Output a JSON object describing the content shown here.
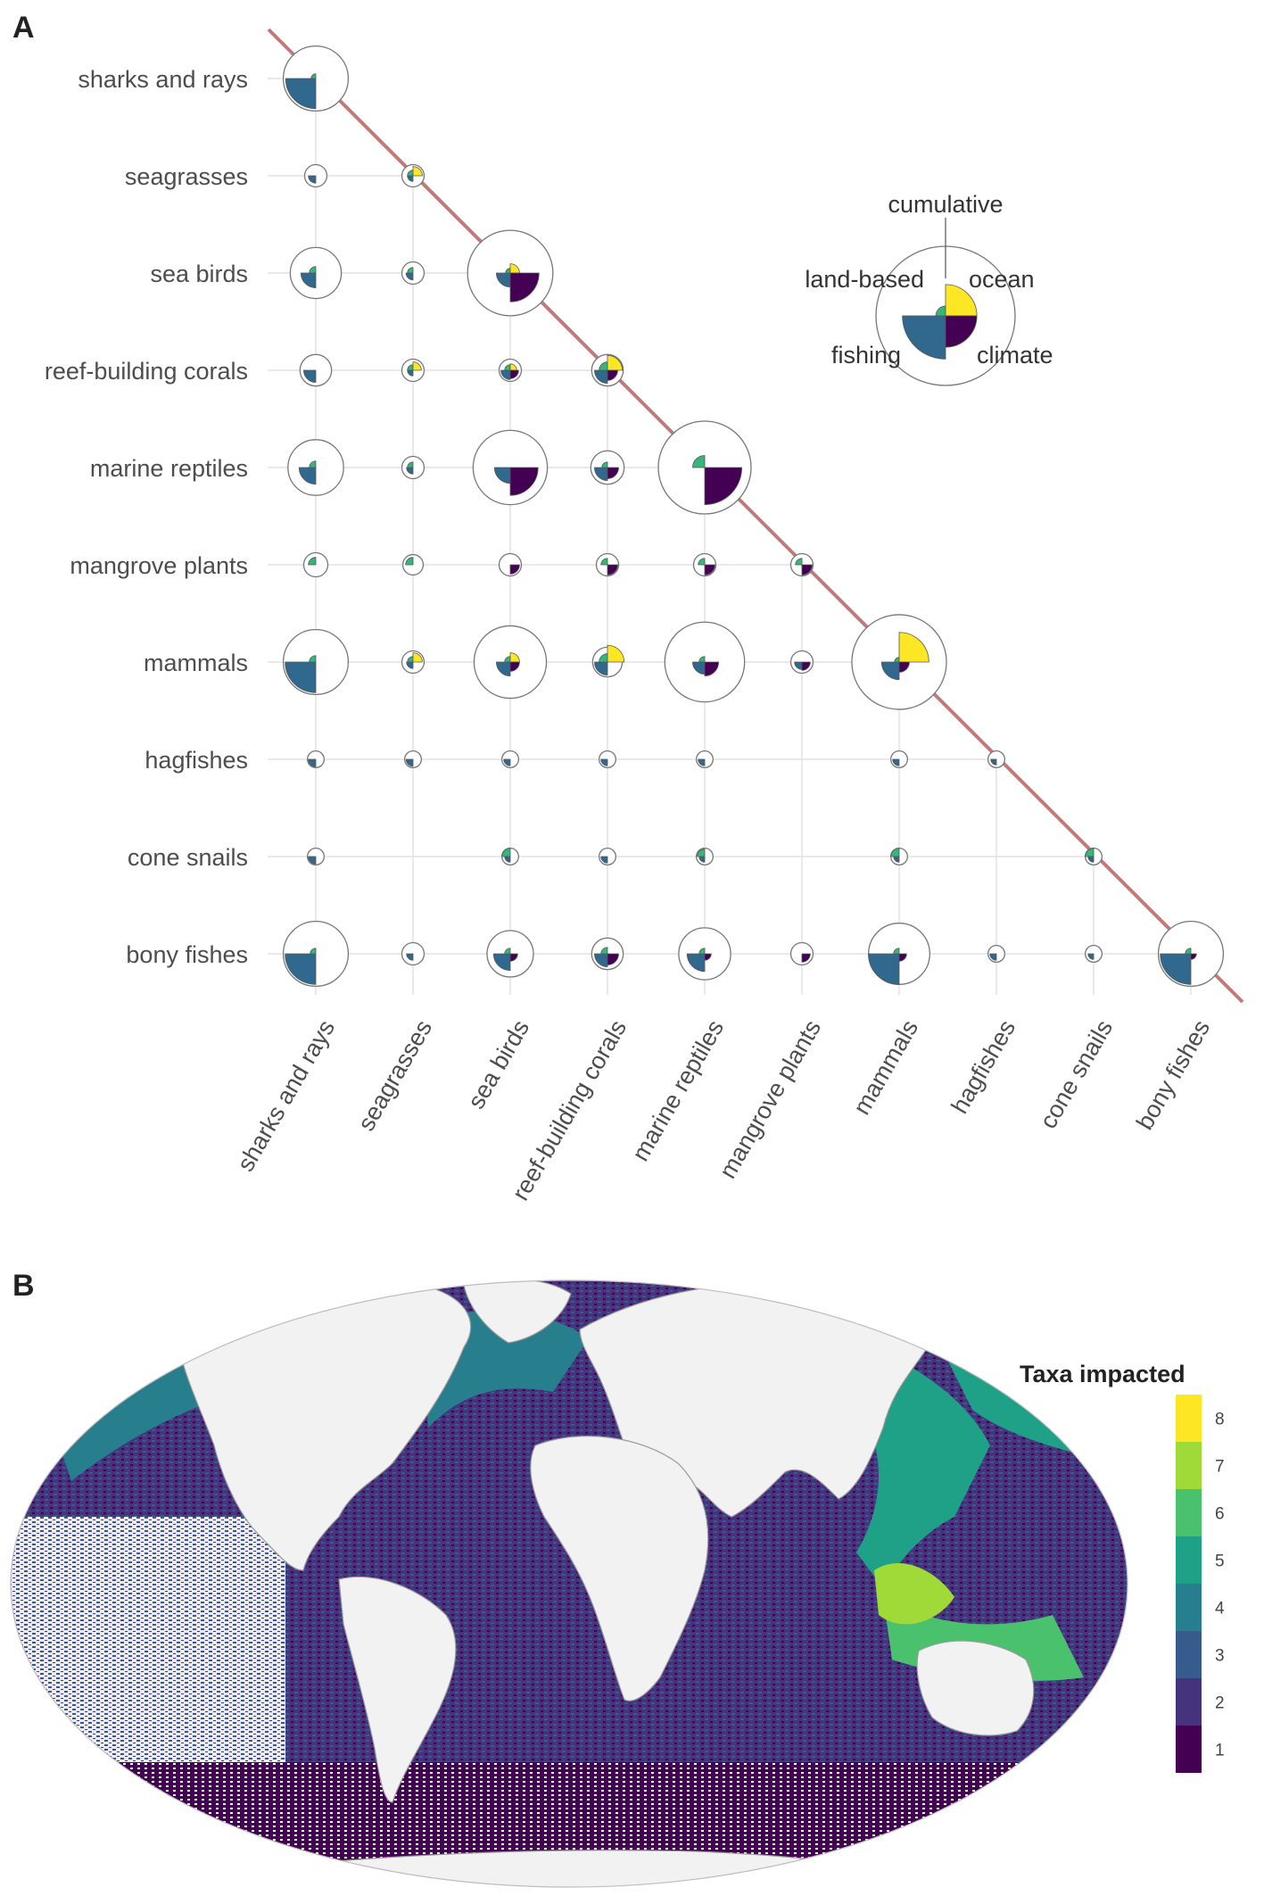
{
  "panel_a": {
    "letter": "A",
    "legend_labels": {
      "cumulative": "cumulative",
      "land": "land-based",
      "ocean": "ocean",
      "fishing": "fishing",
      "climate": "climate"
    }
  },
  "panel_b": {
    "letter": "B",
    "legend_title": "Taxa impacted"
  },
  "colors": {
    "fishing": "#31688e",
    "land": "#35b779",
    "ocean": "#fde725",
    "climate": "#440154",
    "diagonal": "#c07a7a",
    "grid": "#e2e2e2",
    "land_mass": "#f2f2f2"
  },
  "chart_data": [
    {
      "type": "scatter",
      "subtype": "pairwise glyph matrix (pie-quadrant markers)",
      "categories": [
        "sharks and rays",
        "seagrasses",
        "sea birds",
        "reef-building corals",
        "marine reptiles",
        "mangrove plants",
        "mammals",
        "hagfishes",
        "cone snails",
        "bony fishes"
      ],
      "quadrants": [
        "fishing",
        "land-based",
        "ocean",
        "climate",
        "cumulative"
      ],
      "grid": true,
      "diagonal_line": true,
      "legend_position": "top-right",
      "cells": [
        {
          "row": "sharks and rays",
          "col": "sharks and rays",
          "cumulative": 0.7,
          "fishing": 0.65,
          "land": 0.1,
          "ocean": 0.0,
          "climate": 0.0
        },
        {
          "row": "seagrasses",
          "col": "sharks and rays",
          "cumulative": 0.24,
          "fishing": 0.16,
          "land": 0.0,
          "ocean": 0.0,
          "climate": 0.0
        },
        {
          "row": "seagrasses",
          "col": "seagrasses",
          "cumulative": 0.24,
          "fishing": 0.12,
          "land": 0.12,
          "ocean": 0.2,
          "climate": 0.0
        },
        {
          "row": "sea birds",
          "col": "sharks and rays",
          "cumulative": 0.55,
          "fishing": 0.32,
          "land": 0.14,
          "ocean": 0.0,
          "climate": 0.0
        },
        {
          "row": "sea birds",
          "col": "seagrasses",
          "cumulative": 0.24,
          "fishing": 0.15,
          "land": 0.12,
          "ocean": 0.0,
          "climate": 0.0
        },
        {
          "row": "sea birds",
          "col": "sea birds",
          "cumulative": 0.92,
          "fishing": 0.3,
          "land": 0.1,
          "ocean": 0.2,
          "climate": 0.62
        },
        {
          "row": "reef-building corals",
          "col": "sharks and rays",
          "cumulative": 0.34,
          "fishing": 0.26,
          "land": 0.0,
          "ocean": 0.0,
          "climate": 0.0
        },
        {
          "row": "reef-building corals",
          "col": "seagrasses",
          "cumulative": 0.24,
          "fishing": 0.12,
          "land": 0.12,
          "ocean": 0.18,
          "climate": 0.0
        },
        {
          "row": "reef-building corals",
          "col": "sea birds",
          "cumulative": 0.24,
          "fishing": 0.2,
          "land": 0.12,
          "ocean": 0.14,
          "climate": 0.18
        },
        {
          "row": "reef-building corals",
          "col": "reef-building corals",
          "cumulative": 0.34,
          "fishing": 0.28,
          "land": 0.18,
          "ocean": 0.32,
          "climate": 0.22
        },
        {
          "row": "marine reptiles",
          "col": "sharks and rays",
          "cumulative": 0.6,
          "fishing": 0.36,
          "land": 0.14,
          "ocean": 0.0,
          "climate": 0.0
        },
        {
          "row": "marine reptiles",
          "col": "seagrasses",
          "cumulative": 0.24,
          "fishing": 0.14,
          "land": 0.12,
          "ocean": 0.0,
          "climate": 0.0
        },
        {
          "row": "marine reptiles",
          "col": "sea birds",
          "cumulative": 0.8,
          "fishing": 0.34,
          "land": 0.0,
          "ocean": 0.0,
          "climate": 0.6
        },
        {
          "row": "marine reptiles",
          "col": "reef-building corals",
          "cumulative": 0.36,
          "fishing": 0.28,
          "land": 0.12,
          "ocean": 0.0,
          "climate": 0.24
        },
        {
          "row": "marine reptiles",
          "col": "marine reptiles",
          "cumulative": 1.0,
          "fishing": 0.0,
          "land": 0.26,
          "ocean": 0.0,
          "climate": 0.8
        },
        {
          "row": "mangrove plants",
          "col": "sharks and rays",
          "cumulative": 0.26,
          "fishing": 0.0,
          "land": 0.16,
          "ocean": 0.0,
          "climate": 0.0
        },
        {
          "row": "mangrove plants",
          "col": "seagrasses",
          "cumulative": 0.22,
          "fishing": 0.0,
          "land": 0.16,
          "ocean": 0.0,
          "climate": 0.0
        },
        {
          "row": "mangrove plants",
          "col": "sea birds",
          "cumulative": 0.24,
          "fishing": 0.0,
          "land": 0.0,
          "ocean": 0.0,
          "climate": 0.2
        },
        {
          "row": "mangrove plants",
          "col": "reef-building corals",
          "cumulative": 0.24,
          "fishing": 0.0,
          "land": 0.14,
          "ocean": 0.0,
          "climate": 0.22
        },
        {
          "row": "mangrove plants",
          "col": "marine reptiles",
          "cumulative": 0.24,
          "fishing": 0.0,
          "land": 0.14,
          "ocean": 0.0,
          "climate": 0.22
        },
        {
          "row": "mangrove plants",
          "col": "mangrove plants",
          "cumulative": 0.24,
          "fishing": 0.0,
          "land": 0.14,
          "ocean": 0.0,
          "climate": 0.22
        },
        {
          "row": "mammals",
          "col": "sharks and rays",
          "cumulative": 0.7,
          "fishing": 0.66,
          "land": 0.14,
          "ocean": 0.0,
          "climate": 0.0
        },
        {
          "row": "mammals",
          "col": "seagrasses",
          "cumulative": 0.24,
          "fishing": 0.14,
          "land": 0.12,
          "ocean": 0.2,
          "climate": 0.0
        },
        {
          "row": "mammals",
          "col": "sea birds",
          "cumulative": 0.78,
          "fishing": 0.3,
          "land": 0.12,
          "ocean": 0.2,
          "climate": 0.2
        },
        {
          "row": "mammals",
          "col": "reef-building corals",
          "cumulative": 0.32,
          "fishing": 0.28,
          "land": 0.18,
          "ocean": 0.36,
          "climate": 0.0
        },
        {
          "row": "mammals",
          "col": "marine reptiles",
          "cumulative": 0.86,
          "fishing": 0.26,
          "land": 0.12,
          "ocean": 0.0,
          "climate": 0.3
        },
        {
          "row": "mammals",
          "col": "mangrove plants",
          "cumulative": 0.24,
          "fishing": 0.16,
          "land": 0.0,
          "ocean": 0.0,
          "climate": 0.18
        },
        {
          "row": "mammals",
          "col": "mammals",
          "cumulative": 1.02,
          "fishing": 0.38,
          "land": 0.1,
          "ocean": 0.64,
          "climate": 0.22
        },
        {
          "row": "hagfishes",
          "col": "sharks and rays",
          "cumulative": 0.18,
          "fishing": 0.16,
          "land": 0.0,
          "ocean": 0.0,
          "climate": 0.0
        },
        {
          "row": "hagfishes",
          "col": "seagrasses",
          "cumulative": 0.18,
          "fishing": 0.15,
          "land": 0.0,
          "ocean": 0.0,
          "climate": 0.0
        },
        {
          "row": "hagfishes",
          "col": "sea birds",
          "cumulative": 0.18,
          "fishing": 0.14,
          "land": 0.0,
          "ocean": 0.0,
          "climate": 0.0
        },
        {
          "row": "hagfishes",
          "col": "reef-building corals",
          "cumulative": 0.18,
          "fishing": 0.14,
          "land": 0.0,
          "ocean": 0.0,
          "climate": 0.0
        },
        {
          "row": "hagfishes",
          "col": "marine reptiles",
          "cumulative": 0.18,
          "fishing": 0.14,
          "land": 0.0,
          "ocean": 0.0,
          "climate": 0.0
        },
        {
          "row": "hagfishes",
          "col": "mammals",
          "cumulative": 0.18,
          "fishing": 0.14,
          "land": 0.0,
          "ocean": 0.0,
          "climate": 0.0
        },
        {
          "row": "hagfishes",
          "col": "hagfishes",
          "cumulative": 0.18,
          "fishing": 0.12,
          "land": 0.0,
          "ocean": 0.0,
          "climate": 0.0
        },
        {
          "row": "cone snails",
          "col": "sharks and rays",
          "cumulative": 0.18,
          "fishing": 0.16,
          "land": 0.0,
          "ocean": 0.0,
          "climate": 0.0
        },
        {
          "row": "cone snails",
          "col": "sea birds",
          "cumulative": 0.18,
          "fishing": 0.12,
          "land": 0.18,
          "ocean": 0.0,
          "climate": 0.0
        },
        {
          "row": "cone snails",
          "col": "reef-building corals",
          "cumulative": 0.18,
          "fishing": 0.14,
          "land": 0.0,
          "ocean": 0.0,
          "climate": 0.0
        },
        {
          "row": "cone snails",
          "col": "marine reptiles",
          "cumulative": 0.18,
          "fishing": 0.12,
          "land": 0.16,
          "ocean": 0.0,
          "climate": 0.0
        },
        {
          "row": "cone snails",
          "col": "mammals",
          "cumulative": 0.18,
          "fishing": 0.12,
          "land": 0.18,
          "ocean": 0.0,
          "climate": 0.0
        },
        {
          "row": "cone snails",
          "col": "cone snails",
          "cumulative": 0.18,
          "fishing": 0.12,
          "land": 0.18,
          "ocean": 0.0,
          "climate": 0.0
        },
        {
          "row": "bony fishes",
          "col": "sharks and rays",
          "cumulative": 0.7,
          "fishing": 0.66,
          "land": 0.12,
          "ocean": 0.0,
          "climate": 0.0
        },
        {
          "row": "bony fishes",
          "col": "seagrasses",
          "cumulative": 0.24,
          "fishing": 0.14,
          "land": 0.0,
          "ocean": 0.0,
          "climate": 0.0
        },
        {
          "row": "bony fishes",
          "col": "sea birds",
          "cumulative": 0.5,
          "fishing": 0.36,
          "land": 0.12,
          "ocean": 0.0,
          "climate": 0.16
        },
        {
          "row": "bony fishes",
          "col": "reef-building corals",
          "cumulative": 0.34,
          "fishing": 0.28,
          "land": 0.14,
          "ocean": 0.0,
          "climate": 0.24
        },
        {
          "row": "bony fishes",
          "col": "marine reptiles",
          "cumulative": 0.56,
          "fishing": 0.38,
          "land": 0.12,
          "ocean": 0.0,
          "climate": 0.14
        },
        {
          "row": "bony fishes",
          "col": "mangrove plants",
          "cumulative": 0.24,
          "fishing": 0.0,
          "land": 0.0,
          "ocean": 0.0,
          "climate": 0.18
        },
        {
          "row": "bony fishes",
          "col": "mammals",
          "cumulative": 0.66,
          "fishing": 0.66,
          "land": 0.12,
          "ocean": 0.0,
          "climate": 0.16
        },
        {
          "row": "bony fishes",
          "col": "hagfishes",
          "cumulative": 0.18,
          "fishing": 0.14,
          "land": 0.0,
          "ocean": 0.0,
          "climate": 0.0
        },
        {
          "row": "bony fishes",
          "col": "cone snails",
          "cumulative": 0.18,
          "fishing": 0.12,
          "land": 0.0,
          "ocean": 0.0,
          "climate": 0.0
        },
        {
          "row": "bony fishes",
          "col": "bony fishes",
          "cumulative": 0.7,
          "fishing": 0.66,
          "land": 0.12,
          "ocean": 0.0,
          "climate": 0.12
        }
      ],
      "legend_example": {
        "cumulative": 1.0,
        "fishing": 0.62,
        "land": 0.14,
        "ocean": 0.45,
        "climate": 0.45
      }
    },
    {
      "type": "heatmap",
      "subtype": "global map, Mollweide projection",
      "legend_title": "Taxa impacted",
      "legend_position": "right",
      "bins": [
        {
          "value": 1,
          "color": "#440154"
        },
        {
          "value": 2,
          "color": "#46337e"
        },
        {
          "value": 3,
          "color": "#365c8d"
        },
        {
          "value": 4,
          "color": "#277f8e"
        },
        {
          "value": 5,
          "color": "#1fa187"
        },
        {
          "value": 6,
          "color": "#4ac16d"
        },
        {
          "value": 7,
          "color": "#a0da39"
        },
        {
          "value": 8,
          "color": "#fde725"
        }
      ]
    }
  ]
}
